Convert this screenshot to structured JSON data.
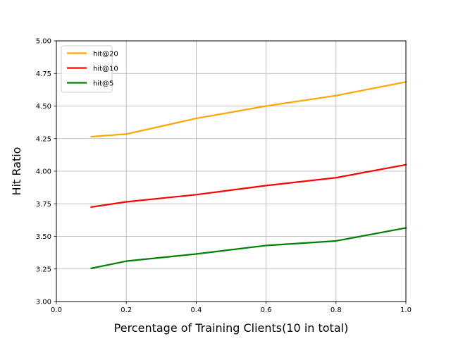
{
  "chart_data": {
    "type": "line",
    "title": "",
    "xlabel": "Percentage of Training Clients(10 in total)",
    "ylabel": "Hit Ratio",
    "xlim": [
      0.0,
      1.0
    ],
    "ylim": [
      3.0,
      5.0
    ],
    "xticks": [
      "0.0",
      "0.2",
      "0.4",
      "0.6",
      "0.8",
      "1.0"
    ],
    "yticks": [
      "3.00",
      "3.25",
      "3.50",
      "3.75",
      "4.00",
      "4.25",
      "4.50",
      "4.75",
      "5.00"
    ],
    "grid": true,
    "legend_position": "upper-left",
    "x": [
      0.1,
      0.2,
      0.4,
      0.6,
      0.8,
      1.0
    ],
    "series": [
      {
        "name": "hit@20",
        "color": "#ffa500",
        "values": [
          4.265,
          4.285,
          4.405,
          4.5,
          4.58,
          4.685
        ]
      },
      {
        "name": "hit@10",
        "color": "#ff0000",
        "values": [
          3.725,
          3.765,
          3.82,
          3.89,
          3.95,
          4.05
        ]
      },
      {
        "name": "hit@5",
        "color": "#008000",
        "values": [
          3.255,
          3.31,
          3.365,
          3.43,
          3.465,
          3.565
        ]
      }
    ]
  }
}
